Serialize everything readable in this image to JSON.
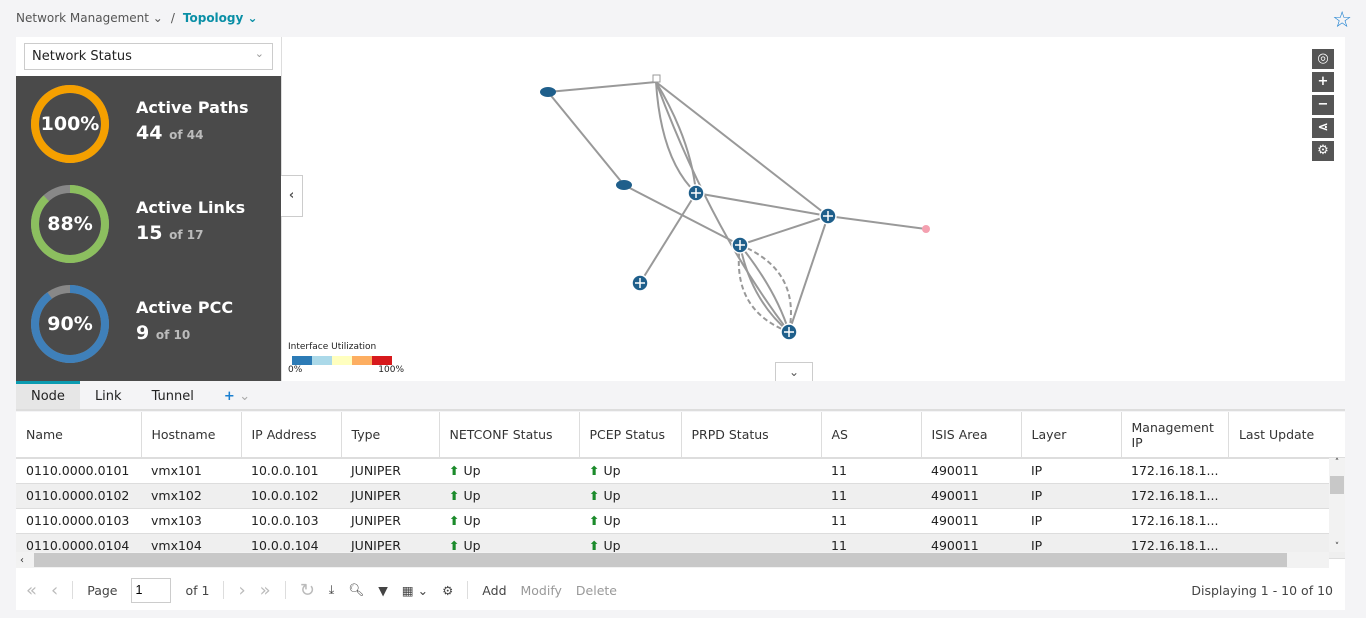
{
  "breadcrumb": {
    "parent": "Network Management",
    "current": "Topology"
  },
  "left_panel": {
    "selector": "Network Status",
    "stats": [
      {
        "title": "Active Paths",
        "percent": "100%",
        "value": "44",
        "of": "of 44",
        "fraction": 1.0,
        "color": "#f5a000"
      },
      {
        "title": "Active Links",
        "percent": "88%",
        "value": "15",
        "of": "of 17",
        "fraction": 0.88,
        "color": "#8cbf5f"
      },
      {
        "title": "Active PCC",
        "percent": "90%",
        "value": "9",
        "of": "of 10",
        "fraction": 0.9,
        "color": "#3f80ba"
      }
    ]
  },
  "legend": {
    "title": "Interface Utilization",
    "min": "0%",
    "max": "100%",
    "colors": [
      "#2c7bb6",
      "#abd9e9",
      "#ffffbf",
      "#fdae61",
      "#d7191c"
    ]
  },
  "tabs": [
    "Node",
    "Link",
    "Tunnel"
  ],
  "table": {
    "columns": [
      "Name",
      "Hostname",
      "IP Address",
      "Type",
      "NETCONF Status",
      "PCEP Status",
      "PRPD Status",
      "AS",
      "ISIS Area",
      "Layer",
      "Management IP",
      "Last Update"
    ],
    "rows": [
      [
        "0110.0000.0101",
        "vmx101",
        "10.0.0.101",
        "JUNIPER",
        "Up",
        "Up",
        "",
        "11",
        "490011",
        "IP",
        "172.16.18.1...",
        ""
      ],
      [
        "0110.0000.0102",
        "vmx102",
        "10.0.0.102",
        "JUNIPER",
        "Up",
        "Up",
        "",
        "11",
        "490011",
        "IP",
        "172.16.18.1...",
        ""
      ],
      [
        "0110.0000.0103",
        "vmx103",
        "10.0.0.103",
        "JUNIPER",
        "Up",
        "Up",
        "",
        "11",
        "490011",
        "IP",
        "172.16.18.1...",
        ""
      ],
      [
        "0110.0000.0104",
        "vmx104",
        "10.0.0.104",
        "JUNIPER",
        "Up",
        "Up",
        "",
        "11",
        "490011",
        "IP",
        "172.16.18.1...",
        ""
      ]
    ]
  },
  "footer": {
    "page_label": "Page",
    "page": "1",
    "of": "of 1",
    "add": "Add",
    "modify": "Modify",
    "delete": "Delete",
    "displaying": "Displaying 1 - 10 of 10"
  }
}
